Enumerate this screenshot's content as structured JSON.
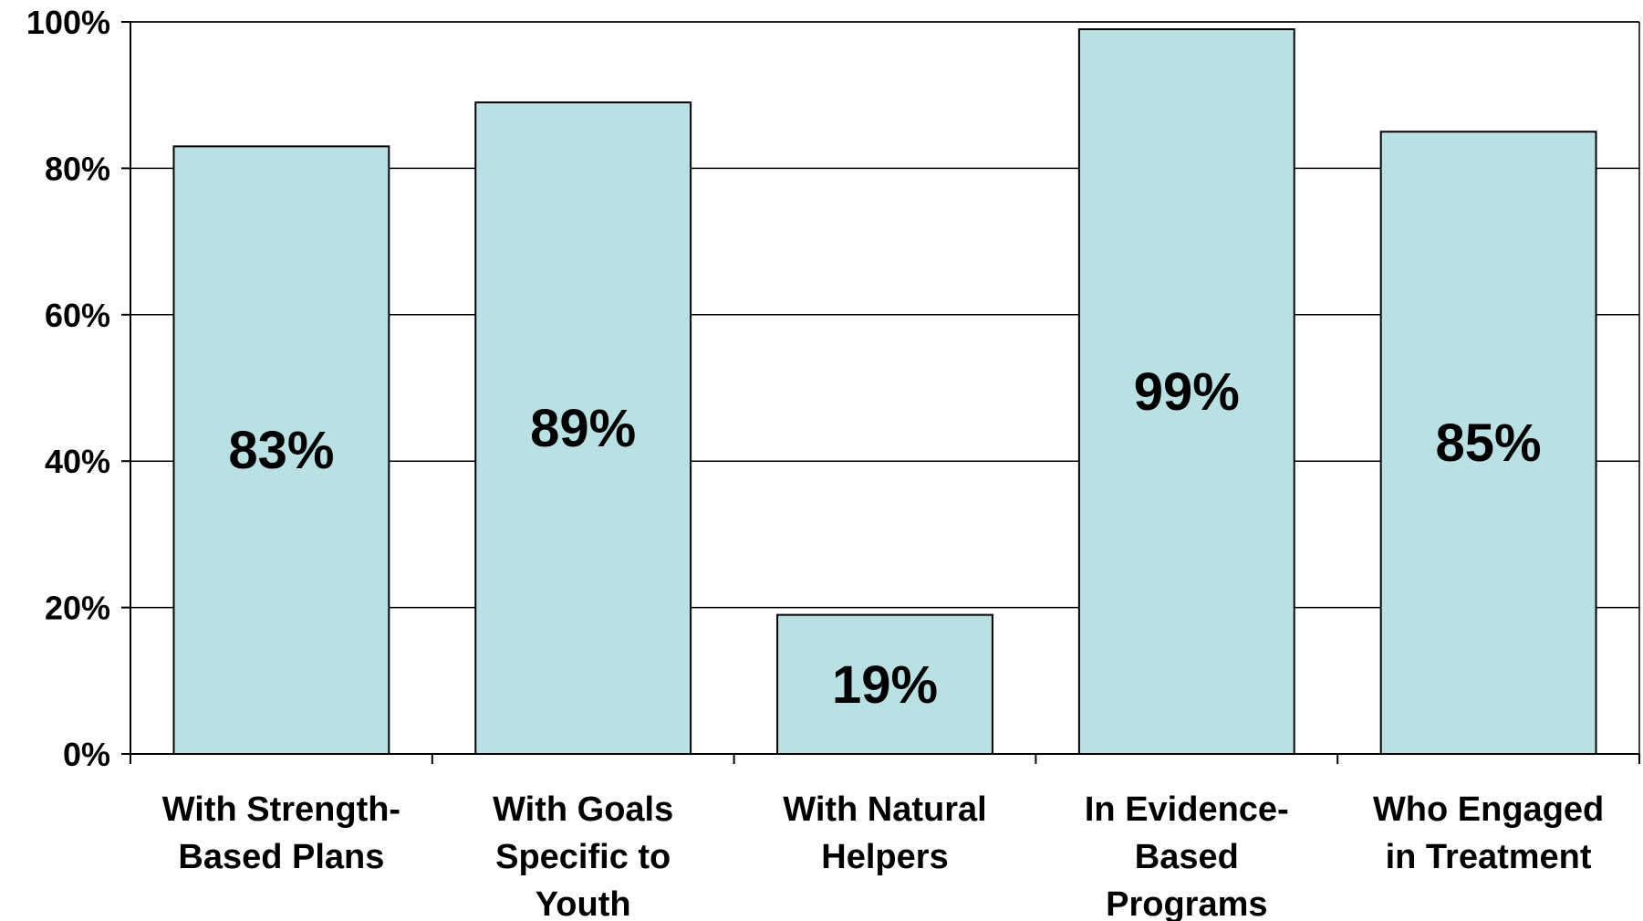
{
  "chart_data": {
    "type": "bar",
    "categories": [
      [
        "With Strength-",
        "Based Plans"
      ],
      [
        "With Goals",
        "Specific to",
        "Youth"
      ],
      [
        "With Natural",
        "Helpers"
      ],
      [
        "In Evidence-",
        "Based",
        "Programs"
      ],
      [
        "Who Engaged",
        "in Treatment"
      ]
    ],
    "values": [
      83,
      89,
      19,
      99,
      85
    ],
    "data_labels": [
      "83%",
      "89%",
      "19%",
      "99%",
      "85%"
    ],
    "ylim": [
      0,
      100
    ],
    "yticks": [
      {
        "value": 0,
        "label": "0%"
      },
      {
        "value": 20,
        "label": "20%"
      },
      {
        "value": 40,
        "label": "40%"
      },
      {
        "value": 60,
        "label": "60%"
      },
      {
        "value": 80,
        "label": "80%"
      },
      {
        "value": 100,
        "label": "100%"
      }
    ],
    "grid": true,
    "legend": "none",
    "bar_color": "#b9e0e3",
    "bar_edge_color": "#000000"
  }
}
